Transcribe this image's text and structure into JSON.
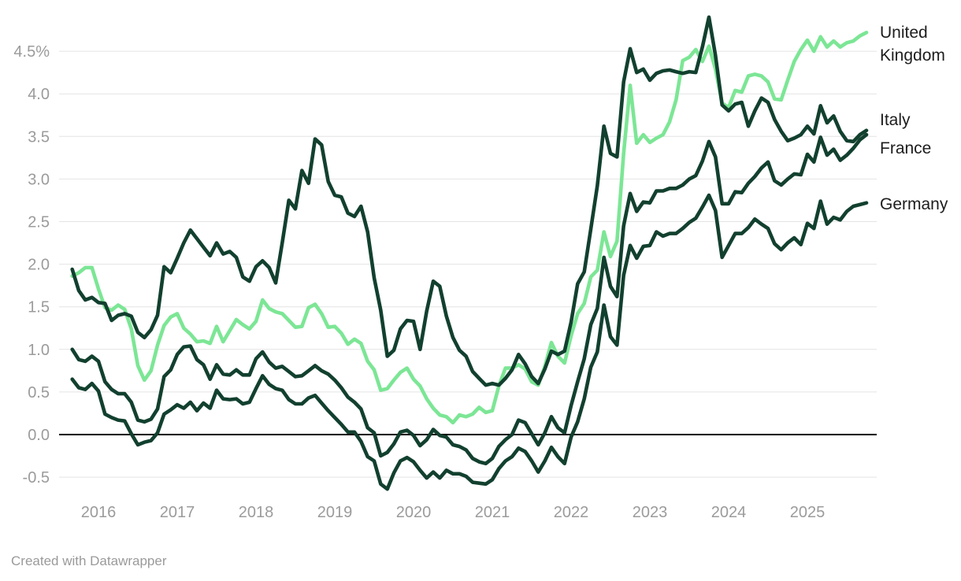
{
  "footer": {
    "credit": "Created with Datawrapper"
  },
  "chart_data": {
    "type": "line",
    "unit": "%",
    "frequency": "monthly",
    "x_start": "2015-09",
    "x_end": "2025-10",
    "grid": "horizontal-only",
    "legend_position": "right-edge-labels",
    "x_axis": {
      "ticks": [
        "2016",
        "2017",
        "2018",
        "2019",
        "2020",
        "2021",
        "2022",
        "2023",
        "2024",
        "2025"
      ]
    },
    "y_axis": {
      "range": [
        -0.72,
        4.95
      ],
      "ticks": [
        {
          "value": 4.5,
          "label": "4.5%"
        },
        {
          "value": 4.0,
          "label": "4.0"
        },
        {
          "value": 3.5,
          "label": "3.5"
        },
        {
          "value": 3.0,
          "label": "3.0"
        },
        {
          "value": 2.5,
          "label": "2.5"
        },
        {
          "value": 2.0,
          "label": "2.0"
        },
        {
          "value": 1.5,
          "label": "1.5"
        },
        {
          "value": 1.0,
          "label": "1.0"
        },
        {
          "value": 0.5,
          "label": "0.5"
        },
        {
          "value": 0.0,
          "label": "0.0"
        },
        {
          "value": -0.5,
          "label": "-0.5"
        }
      ]
    },
    "theme": {
      "background": "#ffffff",
      "gridline": "#e4e4e4",
      "zero_line": "#000000",
      "axis_text": "#9b9b9b",
      "label_text": "#1d1d1d",
      "light_green": "#7ce695",
      "dark_green": "#12402f"
    },
    "series": [
      {
        "id": "united-kingdom",
        "name": "United Kingdom",
        "color": "#7ce695",
        "values": [
          1.86,
          1.9,
          1.96,
          1.96,
          1.71,
          1.49,
          1.46,
          1.52,
          1.47,
          1.24,
          0.81,
          0.64,
          0.75,
          1.05,
          1.28,
          1.38,
          1.42,
          1.25,
          1.18,
          1.09,
          1.1,
          1.07,
          1.27,
          1.09,
          1.22,
          1.35,
          1.29,
          1.24,
          1.33,
          1.58,
          1.48,
          1.44,
          1.42,
          1.34,
          1.26,
          1.27,
          1.49,
          1.53,
          1.42,
          1.26,
          1.27,
          1.19,
          1.06,
          1.12,
          1.07,
          0.86,
          0.76,
          0.52,
          0.54,
          0.64,
          0.73,
          0.78,
          0.65,
          0.57,
          0.42,
          0.31,
          0.23,
          0.21,
          0.14,
          0.23,
          0.21,
          0.24,
          0.32,
          0.26,
          0.28,
          0.57,
          0.78,
          0.78,
          0.82,
          0.77,
          0.62,
          0.58,
          0.8,
          1.08,
          0.92,
          0.84,
          1.16,
          1.42,
          1.54,
          1.85,
          1.93,
          2.38,
          2.09,
          2.27,
          3.3,
          4.1,
          3.42,
          3.52,
          3.43,
          3.48,
          3.52,
          3.67,
          3.93,
          4.39,
          4.43,
          4.52,
          4.38,
          4.56,
          4.29,
          3.89,
          3.84,
          4.04,
          4.02,
          4.21,
          4.23,
          4.21,
          4.14,
          3.94,
          3.93,
          4.16,
          4.38,
          4.52,
          4.63,
          4.5,
          4.67,
          4.55,
          4.62,
          4.55,
          4.6,
          4.62,
          4.68,
          4.72
        ]
      },
      {
        "id": "germany",
        "name": "Germany",
        "color": "#12402f",
        "values": [
          0.65,
          0.55,
          0.53,
          0.6,
          0.51,
          0.24,
          0.2,
          0.17,
          0.16,
          0.01,
          -0.12,
          -0.09,
          -0.07,
          0.02,
          0.24,
          0.29,
          0.35,
          0.31,
          0.38,
          0.28,
          0.37,
          0.31,
          0.52,
          0.42,
          0.41,
          0.42,
          0.36,
          0.38,
          0.54,
          0.69,
          0.59,
          0.54,
          0.52,
          0.41,
          0.36,
          0.36,
          0.43,
          0.46,
          0.37,
          0.28,
          0.2,
          0.12,
          0.03,
          0.03,
          -0.08,
          -0.26,
          -0.31,
          -0.58,
          -0.64,
          -0.45,
          -0.31,
          -0.27,
          -0.32,
          -0.42,
          -0.51,
          -0.44,
          -0.51,
          -0.42,
          -0.46,
          -0.46,
          -0.49,
          -0.56,
          -0.57,
          -0.58,
          -0.53,
          -0.4,
          -0.31,
          -0.26,
          -0.16,
          -0.2,
          -0.31,
          -0.44,
          -0.31,
          -0.15,
          -0.26,
          -0.34,
          -0.03,
          0.15,
          0.42,
          0.79,
          0.97,
          1.52,
          1.15,
          1.05,
          1.87,
          2.22,
          2.07,
          2.21,
          2.22,
          2.38,
          2.33,
          2.36,
          2.36,
          2.42,
          2.49,
          2.54,
          2.67,
          2.81,
          2.63,
          2.08,
          2.22,
          2.36,
          2.36,
          2.43,
          2.53,
          2.47,
          2.42,
          2.24,
          2.17,
          2.25,
          2.31,
          2.23,
          2.48,
          2.42,
          2.74,
          2.47,
          2.55,
          2.52,
          2.62,
          2.68,
          2.7,
          2.72
        ]
      },
      {
        "id": "france",
        "name": "France",
        "color": "#12402f",
        "values": [
          1.0,
          0.88,
          0.86,
          0.92,
          0.86,
          0.62,
          0.53,
          0.48,
          0.48,
          0.38,
          0.17,
          0.15,
          0.18,
          0.3,
          0.68,
          0.76,
          0.94,
          1.03,
          1.04,
          0.88,
          0.82,
          0.65,
          0.82,
          0.71,
          0.7,
          0.76,
          0.7,
          0.7,
          0.89,
          0.97,
          0.85,
          0.78,
          0.8,
          0.74,
          0.68,
          0.69,
          0.75,
          0.81,
          0.75,
          0.71,
          0.64,
          0.55,
          0.44,
          0.38,
          0.3,
          0.08,
          0.02,
          -0.25,
          -0.21,
          -0.11,
          0.03,
          0.05,
          -0.01,
          -0.13,
          -0.06,
          0.06,
          -0.01,
          -0.03,
          -0.12,
          -0.14,
          -0.18,
          -0.28,
          -0.32,
          -0.34,
          -0.28,
          -0.14,
          -0.06,
          0.0,
          0.17,
          0.14,
          0.01,
          -0.12,
          0.02,
          0.21,
          0.08,
          0.02,
          0.34,
          0.62,
          0.89,
          1.29,
          1.48,
          2.08,
          1.74,
          1.62,
          2.45,
          2.83,
          2.62,
          2.73,
          2.72,
          2.86,
          2.86,
          2.89,
          2.89,
          2.93,
          3.0,
          3.04,
          3.21,
          3.44,
          3.26,
          2.71,
          2.71,
          2.85,
          2.84,
          2.95,
          3.03,
          3.13,
          3.2,
          2.98,
          2.93,
          3.0,
          3.06,
          3.05,
          3.29,
          3.2,
          3.49,
          3.28,
          3.35,
          3.22,
          3.28,
          3.36,
          3.46,
          3.52
        ]
      },
      {
        "id": "italy",
        "name": "Italy",
        "color": "#12402f",
        "values": [
          1.94,
          1.69,
          1.58,
          1.61,
          1.55,
          1.54,
          1.34,
          1.4,
          1.42,
          1.39,
          1.2,
          1.14,
          1.23,
          1.4,
          1.97,
          1.9,
          2.07,
          2.25,
          2.4,
          2.3,
          2.2,
          2.1,
          2.25,
          2.12,
          2.15,
          2.08,
          1.85,
          1.8,
          1.97,
          2.04,
          1.96,
          1.78,
          2.25,
          2.75,
          2.65,
          3.1,
          2.95,
          3.47,
          3.4,
          2.97,
          2.81,
          2.79,
          2.6,
          2.56,
          2.68,
          2.38,
          1.84,
          1.46,
          0.92,
          0.99,
          1.24,
          1.34,
          1.33,
          1.0,
          1.45,
          1.8,
          1.74,
          1.39,
          1.14,
          0.99,
          0.92,
          0.74,
          0.66,
          0.58,
          0.6,
          0.58,
          0.66,
          0.76,
          0.94,
          0.83,
          0.68,
          0.6,
          0.77,
          0.98,
          0.94,
          0.98,
          1.32,
          1.77,
          1.91,
          2.41,
          2.92,
          3.62,
          3.3,
          3.26,
          4.14,
          4.53,
          4.25,
          4.29,
          4.16,
          4.24,
          4.27,
          4.28,
          4.26,
          4.24,
          4.26,
          4.25,
          4.55,
          4.9,
          4.45,
          3.87,
          3.8,
          3.88,
          3.9,
          3.62,
          3.8,
          3.95,
          3.9,
          3.7,
          3.56,
          3.45,
          3.48,
          3.52,
          3.62,
          3.53,
          3.86,
          3.66,
          3.74,
          3.56,
          3.45,
          3.44,
          3.52,
          3.57
        ]
      }
    ]
  }
}
